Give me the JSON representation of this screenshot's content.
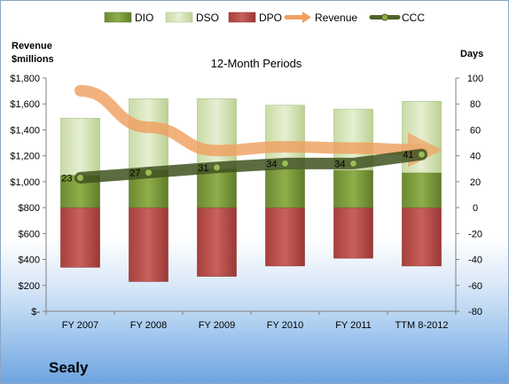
{
  "company": "Sealy",
  "chart_data": {
    "type": "bar",
    "title": "12-Month Periods",
    "left_axis_title": [
      "Revenue",
      "$millions"
    ],
    "right_axis_title": "Days",
    "categories": [
      "FY 2007",
      "FY 2008",
      "FY 2009",
      "FY 2010",
      "FY 2011",
      "TTM 8-2012"
    ],
    "left_axis": {
      "min": 0,
      "max": 1800,
      "step": 200,
      "tick_labels": [
        "$-",
        "$200",
        "$400",
        "$600",
        "$800",
        "$1,000",
        "$1,200",
        "$1,400",
        "$1,600",
        "$1,800"
      ]
    },
    "right_axis": {
      "min": -80,
      "max": 100,
      "step": 20,
      "tick_labels": [
        "-80",
        "-60",
        "-40",
        "-20",
        "0",
        "20",
        "40",
        "60",
        "80",
        "100"
      ]
    },
    "grid": false,
    "legend_position": "top",
    "series": [
      {
        "name": "DIO",
        "axis": "right",
        "kind": "stacked-bar",
        "color": "#77933c",
        "values": [
          25,
          29,
          30,
          30,
          29,
          27
        ]
      },
      {
        "name": "DSO",
        "axis": "right",
        "kind": "stacked-bar",
        "color": "#d7e4bd",
        "values": [
          44,
          55,
          54,
          49,
          47,
          55
        ]
      },
      {
        "name": "DPO",
        "axis": "right",
        "kind": "stacked-bar-negative",
        "color": "#c0504d",
        "values": [
          -46,
          -57,
          -53,
          -45,
          -39,
          -45
        ]
      },
      {
        "name": "Revenue",
        "axis": "left",
        "kind": "arrow-line",
        "color": "#f4a460",
        "values": [
          1702,
          1420,
          1240,
          1270,
          1259,
          1245
        ]
      },
      {
        "name": "CCC",
        "axis": "right",
        "kind": "line",
        "color": "#4f6228",
        "values": [
          23,
          27,
          31,
          34,
          34,
          41
        ]
      }
    ]
  }
}
